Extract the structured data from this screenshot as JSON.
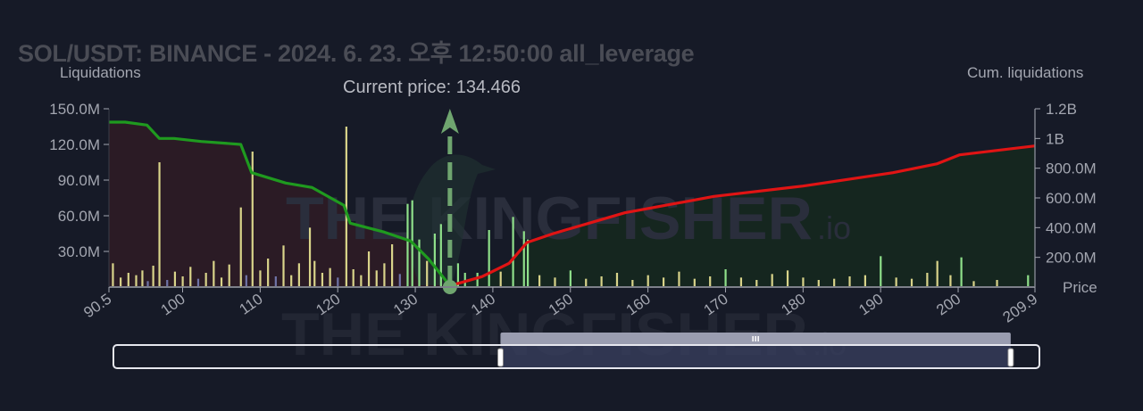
{
  "title": "SOL/USDT: BINANCE - 2024. 6. 23. 오후 12:50:00 all_leverage",
  "watermark": "THE KINGFISHER",
  "watermark_suffix": ".io",
  "current_price_label": "Current price: 134.466",
  "colors": {
    "background": "#161a27",
    "long_fill": "#2b1b25",
    "short_fill": "#15261f",
    "long_line": "#1f9a1f",
    "short_line": "#e01414",
    "bar_yellow": "#d9d48a",
    "bar_green": "#8fe08a",
    "bar_blue": "#6f74a8",
    "marker": "#6fa56f"
  },
  "chart_data": {
    "type": "bar",
    "title": "SOL/USDT: BINANCE - 2024. 6. 23. 오후 12:50:00 all_leverage",
    "current_price": 134.466,
    "xlabel": "Price",
    "ylabel_left": "Liquidations",
    "ylabel_right": "Cum. liquidations",
    "xlim": [
      90.5,
      209.9
    ],
    "ylim_left": [
      0,
      150000000
    ],
    "ylim_right": [
      0,
      1200000000
    ],
    "x_ticks": [
      "90.5",
      "100",
      "110",
      "120",
      "130",
      "140",
      "150",
      "160",
      "170",
      "180",
      "190",
      "200",
      "209.9"
    ],
    "x_tick_values": [
      90.5,
      100,
      110,
      120,
      130,
      140,
      150,
      160,
      170,
      180,
      190,
      200,
      209.9
    ],
    "y_left_ticks": [
      "150.0M",
      "120.0M",
      "90.0M",
      "60.0M",
      "30.0M"
    ],
    "y_left_tick_values": [
      150,
      120,
      90,
      60,
      30
    ],
    "y_right_ticks": [
      "1.2B",
      "1B",
      "800.0M",
      "600.0M",
      "400.0M",
      "200.0M"
    ],
    "y_right_tick_values": [
      1.2,
      1.0,
      0.8,
      0.6,
      0.4,
      0.2
    ],
    "bars_unit": "M",
    "bars": [
      [
        91,
        20,
        "y"
      ],
      [
        92,
        8,
        "y"
      ],
      [
        93,
        12,
        "y"
      ],
      [
        94,
        10,
        "y"
      ],
      [
        94.8,
        14,
        "y"
      ],
      [
        95.5,
        5,
        "b"
      ],
      [
        96.2,
        18,
        "y"
      ],
      [
        97,
        105,
        "y"
      ],
      [
        98,
        6,
        "b"
      ],
      [
        99,
        13,
        "y"
      ],
      [
        100,
        9,
        "y"
      ],
      [
        101,
        17,
        "y"
      ],
      [
        102,
        7,
        "b"
      ],
      [
        103,
        12,
        "y"
      ],
      [
        104,
        22,
        "y"
      ],
      [
        105,
        8,
        "y"
      ],
      [
        106,
        19,
        "y"
      ],
      [
        107.5,
        67,
        "y"
      ],
      [
        108.2,
        10,
        "b"
      ],
      [
        109,
        114,
        "y"
      ],
      [
        110,
        14,
        "y"
      ],
      [
        111,
        24,
        "y"
      ],
      [
        112,
        9,
        "b"
      ],
      [
        113,
        35,
        "y"
      ],
      [
        114,
        10,
        "y"
      ],
      [
        115,
        20,
        "y"
      ],
      [
        116.4,
        50,
        "y"
      ],
      [
        117,
        22,
        "y"
      ],
      [
        118,
        12,
        "y"
      ],
      [
        119,
        16,
        "y"
      ],
      [
        120,
        8,
        "b"
      ],
      [
        121.1,
        135,
        "y"
      ],
      [
        122,
        15,
        "y"
      ],
      [
        123,
        10,
        "y"
      ],
      [
        124,
        30,
        "y"
      ],
      [
        125,
        14,
        "y"
      ],
      [
        126,
        20,
        "y"
      ],
      [
        127,
        36,
        "y"
      ],
      [
        128,
        11,
        "b"
      ],
      [
        129,
        70,
        "g"
      ],
      [
        129.6,
        73,
        "g"
      ],
      [
        130.5,
        40,
        "g"
      ],
      [
        131.5,
        22,
        "y"
      ],
      [
        132.5,
        45,
        "g"
      ],
      [
        133.3,
        53,
        "g"
      ],
      [
        135.5,
        20,
        "g"
      ],
      [
        136.4,
        12,
        "g"
      ],
      [
        138,
        12,
        "g"
      ],
      [
        139.5,
        48,
        "g"
      ],
      [
        141,
        13,
        "y"
      ],
      [
        142.6,
        59,
        "g"
      ],
      [
        144,
        47,
        "g"
      ],
      [
        144.5,
        40,
        "g"
      ],
      [
        146,
        10,
        "y"
      ],
      [
        148,
        8,
        "y"
      ],
      [
        150,
        14,
        "g"
      ],
      [
        152,
        7,
        "y"
      ],
      [
        154,
        9,
        "y"
      ],
      [
        156,
        12,
        "y"
      ],
      [
        158,
        6,
        "y"
      ],
      [
        160,
        10,
        "y"
      ],
      [
        162,
        8,
        "y"
      ],
      [
        164,
        13,
        "y"
      ],
      [
        166,
        7,
        "y"
      ],
      [
        168,
        9,
        "y"
      ],
      [
        170,
        15,
        "g"
      ],
      [
        172,
        8,
        "y"
      ],
      [
        174,
        6,
        "y"
      ],
      [
        176,
        11,
        "y"
      ],
      [
        178,
        14,
        "y"
      ],
      [
        180,
        8,
        "y"
      ],
      [
        182,
        6,
        "y"
      ],
      [
        184,
        7,
        "y"
      ],
      [
        186,
        9,
        "y"
      ],
      [
        188,
        10,
        "y"
      ],
      [
        190,
        26,
        "g"
      ],
      [
        192,
        8,
        "y"
      ],
      [
        194,
        7,
        "y"
      ],
      [
        196,
        12,
        "y"
      ],
      [
        197.3,
        22,
        "y"
      ],
      [
        199,
        10,
        "y"
      ],
      [
        200.4,
        25,
        "g"
      ],
      [
        202,
        5,
        "y"
      ],
      [
        205,
        6,
        "y"
      ],
      [
        209,
        10,
        "g"
      ]
    ],
    "series": [
      {
        "axis": "right",
        "color": "green",
        "x": [
          90.5,
          92.6,
          95.4,
          97.0,
          98.9,
          102.4,
          107.5,
          108.9,
          113.3,
          116.7,
          120.8,
          121.6,
          126.0,
          129.4,
          131.7,
          134.466
        ],
        "y": [
          1.11,
          1.11,
          1.09,
          1.0,
          1.0,
          0.98,
          0.96,
          0.77,
          0.7,
          0.67,
          0.55,
          0.43,
          0.37,
          0.31,
          0.19,
          0.01
        ]
      },
      {
        "axis": "right",
        "color": "red",
        "x": [
          134.466,
          135.2,
          138.6,
          142.1,
          144.4,
          147.8,
          157.0,
          168.5,
          180.0,
          191.6,
          197.3,
          200.2,
          209.9
        ],
        "y": [
          0.0,
          0.02,
          0.07,
          0.16,
          0.3,
          0.36,
          0.5,
          0.61,
          0.68,
          0.77,
          0.83,
          0.89,
          0.95
        ]
      }
    ],
    "range_slider": {
      "selected_fraction": [
        0.418,
        0.969
      ]
    },
    "grid": false
  }
}
